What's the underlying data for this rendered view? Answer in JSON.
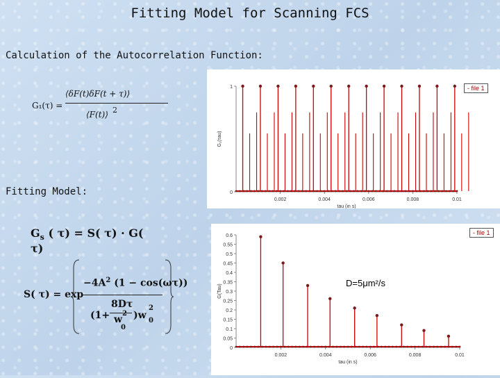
{
  "title": "Fitting Model for Scanning FCS",
  "sections": {
    "acf_heading": "Calculation of the Autocorrelation Function:",
    "fit_heading": "Fitting Model:"
  },
  "formulas": {
    "g1_lhs": "G₁(τ) =",
    "g1_num": "⟨δF(t)δF(t + τ)⟩",
    "g1_den": "⟨F(t)⟩",
    "g1_den_exp": "2",
    "gs": "G",
    "gs_sub": "s",
    "gs_rest": "( τ) = S( τ) · G( τ)",
    "s_lhs": "S( τ) = exp",
    "s_num_pre": "−4A",
    "s_num_exp": "2",
    "s_num_post": "(1 − cos(ωτ))",
    "s_den_pre": "(1+",
    "s_den_frac_num": "8Dτ",
    "s_den_frac_den": "w",
    "s_den_frac_den_exp": "2",
    "s_den_frac_den_sub": "0",
    "s_den_post": ")w",
    "s_den_post_exp": "2",
    "s_den_post_sub": "0"
  },
  "chart_data": [
    {
      "type": "line",
      "legend": [
        "- file 1"
      ],
      "ylabel": "G₁(τau)",
      "xlabel": "tau (in s)",
      "x_ticks": [
        "0.002",
        "0.004",
        "0.006",
        "0.008",
        "0.01"
      ],
      "y_ticks": [
        "0",
        "1"
      ],
      "xlim": [
        0,
        0.01
      ],
      "ylim": [
        0,
        1
      ],
      "peak_x": [
        0.0003,
        0.0011,
        0.0019,
        0.0027,
        0.0035,
        0.0043,
        0.0051,
        0.0059,
        0.0067,
        0.0075,
        0.0083,
        0.0091,
        0.0099
      ],
      "peak_y": [
        1,
        1,
        1,
        1,
        1,
        1,
        1,
        1,
        1,
        1,
        1,
        1,
        1
      ],
      "color": "#cc0000"
    },
    {
      "type": "line",
      "legend": [
        "- file 1"
      ],
      "ylabel": "G(Tau)",
      "xlabel": "tau (in s)",
      "x_ticks": [
        "0.002",
        "0.004",
        "0.006",
        "0.008",
        "0.01"
      ],
      "y_ticks": [
        "0",
        "0.05",
        "0.1",
        "0.15",
        "0.2",
        "0.25",
        "0.3",
        "0.35",
        "0.4",
        "0.45",
        "0.5",
        "0.55",
        "0.6"
      ],
      "xlim": [
        0,
        0.01
      ],
      "ylim": [
        0,
        0.6
      ],
      "annotation": "D=5μm²/s",
      "peak_x": [
        0.0011,
        0.0021,
        0.0032,
        0.0042,
        0.0053,
        0.0063,
        0.0074,
        0.0084,
        0.0095
      ],
      "peak_y": [
        0.59,
        0.45,
        0.33,
        0.26,
        0.21,
        0.17,
        0.12,
        0.09,
        0.06
      ],
      "color": "#cc0000"
    }
  ]
}
